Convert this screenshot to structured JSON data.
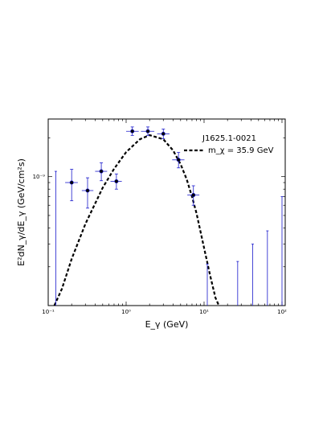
{
  "chart_data": {
    "type": "scatter",
    "title": "",
    "xlabel": "E_γ (GeV)",
    "ylabel": "E²dN_γ/dE_γ (GeV/cm²s)",
    "x_scale": "log",
    "y_scale": "log",
    "xlim": [
      0.1,
      110
    ],
    "ylim": [
      1e-10,
      2.8e-09
    ],
    "x_tick_labels": [
      {
        "value": 0.1,
        "label": "10⁻¹"
      },
      {
        "value": 1,
        "label": "10⁰"
      },
      {
        "value": 10,
        "label": "10¹"
      },
      {
        "value": 100,
        "label": "10²"
      }
    ],
    "y_tick_labels": [
      {
        "value": 1e-09,
        "label": "10⁻⁹"
      }
    ],
    "grid": false,
    "legend": {
      "position": "top-right",
      "title": "J1625.1-0021",
      "entries": [
        {
          "label": "m_χ = 35.9 GeV",
          "style": "dashed",
          "color": "#000000"
        }
      ]
    },
    "series": [
      {
        "kind": "points",
        "color": "#1a1acc",
        "points": [
          {
            "x": 0.2,
            "y": 9e-10,
            "xerr": [
              0.035,
              0.04
            ],
            "yerr": [
              2.5e-10,
              2.4e-10
            ]
          },
          {
            "x": 0.32,
            "y": 7.8e-10,
            "xerr": [
              0.05,
              0.06
            ],
            "yerr": [
              2.1e-10,
              2e-10
            ]
          },
          {
            "x": 0.48,
            "y": 1.1e-09,
            "xerr": [
              0.08,
              0.09
            ],
            "yerr": [
              1.7e-10,
              1.8e-10
            ]
          },
          {
            "x": 0.75,
            "y": 9.2e-10,
            "xerr": [
              0.12,
              0.13
            ],
            "yerr": [
              1.2e-10,
              1.3e-10
            ]
          },
          {
            "x": 1.2,
            "y": 2.25e-09,
            "xerr": [
              0.2,
              0.25
            ],
            "yerr": [
              1.6e-10,
              1.8e-10
            ]
          },
          {
            "x": 1.9,
            "y": 2.25e-09,
            "xerr": [
              0.35,
              0.4
            ],
            "yerr": [
              1.6e-10,
              1.8e-10
            ]
          },
          {
            "x": 3.0,
            "y": 2.15e-09,
            "xerr": [
              0.5,
              0.6
            ],
            "yerr": [
              1.8e-10,
              1.9e-10
            ]
          },
          {
            "x": 4.7,
            "y": 1.35e-09,
            "xerr": [
              0.8,
              0.9
            ],
            "yerr": [
              1.8e-10,
              1.9e-10
            ]
          },
          {
            "x": 7.3,
            "y": 7.2e-10,
            "xerr": [
              1.2,
              1.4
            ],
            "yerr": [
              1.2e-10,
              1.3e-10
            ]
          }
        ],
        "upper_limits": [
          {
            "x": 0.125,
            "y_top": 1.1e-09
          },
          {
            "x": 11.0,
            "y_top": 2.1e-10
          },
          {
            "x": 27.0,
            "y_top": 2.2e-10
          },
          {
            "x": 42.0,
            "y_top": 3e-10
          },
          {
            "x": 65.0,
            "y_top": 3.8e-10
          },
          {
            "x": 100.0,
            "y_top": 7e-10
          }
        ]
      },
      {
        "kind": "dashed_line",
        "name": "m_χ = 35.9 GeV",
        "color": "#000000",
        "x": [
          0.12,
          0.15,
          0.2,
          0.3,
          0.5,
          0.7,
          1.0,
          1.5,
          2.0,
          3.0,
          4.0,
          5.0,
          6.0,
          7.0,
          8.0,
          10.0,
          12.0,
          14.0,
          15.5
        ],
        "y": [
          1e-10,
          1.35e-10,
          2.3e-10,
          4.3e-10,
          8.2e-10,
          1.15e-09,
          1.55e-09,
          1.95e-09,
          2.1e-09,
          1.95e-09,
          1.6e-09,
          1.25e-09,
          9.5e-10,
          7e-10,
          5.2e-10,
          2.8e-10,
          1.7e-10,
          1.15e-10,
          1e-10
        ]
      }
    ]
  }
}
